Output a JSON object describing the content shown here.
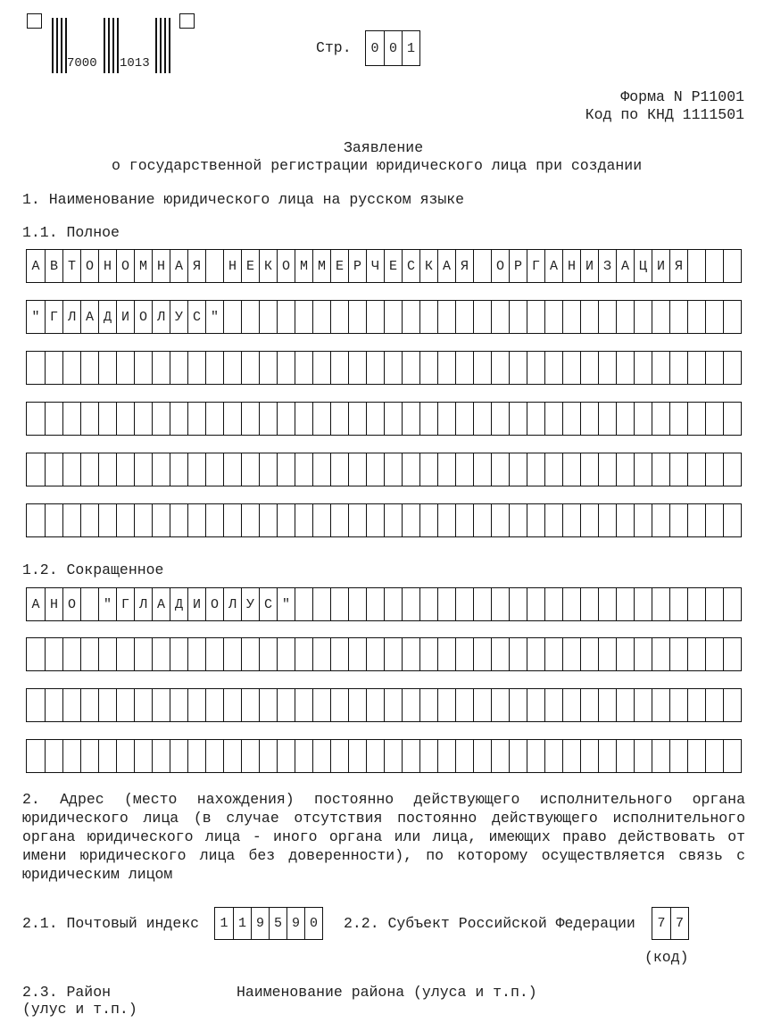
{
  "barcode": {
    "left_number": "7000",
    "right_number": "1013"
  },
  "page": {
    "label": "Стр.",
    "digits": [
      "0",
      "0",
      "1"
    ]
  },
  "form": {
    "form_number": "Форма N Р11001",
    "knd_code": "Код по КНД 1111501"
  },
  "title": {
    "line1": "Заявление",
    "line2": "о государственной регистрации юридического лица при создании"
  },
  "section1": {
    "heading": "1. Наименование юридического лица на русском языке",
    "full": {
      "label": "1.1. Полное",
      "rows": [
        "АВТОНОМНАЯ НЕКОММЕРЧЕСКАЯ ОРГАНИЗАЦИЯ",
        "\"ГЛАДИОЛУС\"",
        "",
        "",
        "",
        ""
      ]
    },
    "short": {
      "label": "1.2. Сокращенное",
      "rows": [
        "АНО \"ГЛАДИОЛУС\"",
        "",
        "",
        ""
      ]
    }
  },
  "section2": {
    "lines": [
      "2. Адрес (место нахождения) постоянно действующего исполнительного органа",
      "юридического лица (в случае отсутствия постоянно действующего исполнительного",
      "органа юридического лица - иного органа или лица, имеющих право действовать от",
      "имени юридического лица без доверенности), по которому осуществляется связь с"
    ],
    "last_line": "юридическим лицом",
    "postal": {
      "label": "2.1. Почтовый индекс",
      "digits": [
        "1",
        "1",
        "9",
        "5",
        "9",
        "0"
      ]
    },
    "subject": {
      "label": "2.2. Субъект Российской Федерации",
      "digits": [
        "7",
        "7"
      ],
      "note": "(код)"
    },
    "district": {
      "label": "2.3. Район",
      "sublabel": "(улус и т.п.)",
      "name_label": "Наименование района (улуса и т.п.)"
    }
  }
}
